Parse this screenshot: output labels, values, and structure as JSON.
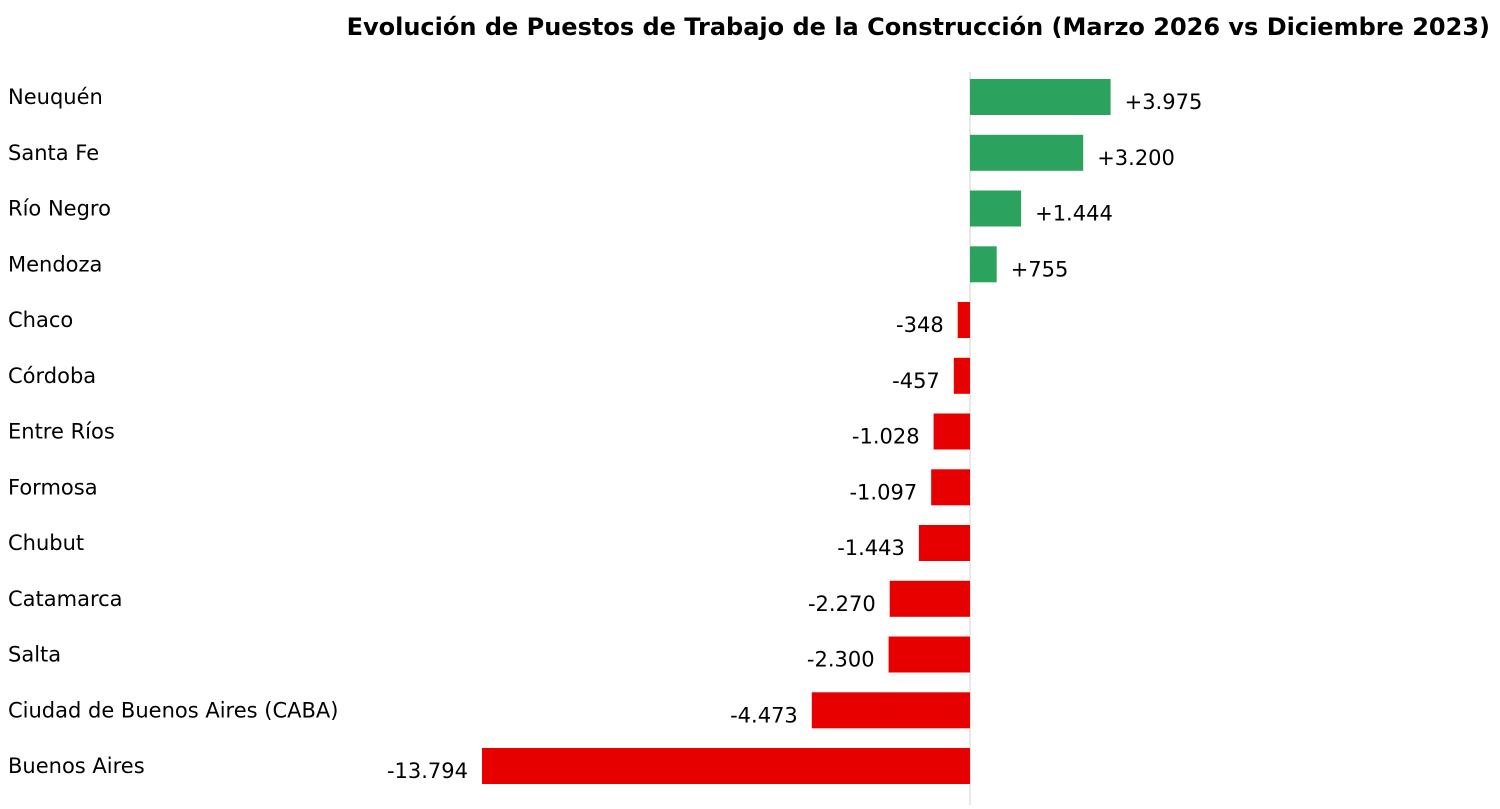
{
  "chart_data": {
    "type": "bar",
    "orientation": "horizontal",
    "title": "Evolución de Puestos de Trabajo de la Construcción (Marzo 2026 vs Diciembre 2023)",
    "xlabel": "",
    "ylabel": "",
    "grid": false,
    "xlim": [
      -14500,
      4600
    ],
    "categories": [
      "Neuquén",
      "Santa Fe",
      "Río Negro",
      "Mendoza",
      "Chaco",
      "Córdoba",
      "Entre Ríos",
      "Formosa",
      "Chubut",
      "Catamarca",
      "Salta",
      "Ciudad de Buenos Aires (CABA)",
      "Buenos Aires"
    ],
    "values": [
      3975,
      3200,
      1444,
      755,
      -348,
      -457,
      -1028,
      -1097,
      -1443,
      -2270,
      -2300,
      -4473,
      -13794
    ],
    "value_labels": [
      "+3.975",
      "+3.200",
      "+1.444",
      "+755",
      "-348",
      "-457",
      "-1.028",
      "-1.097",
      "-1.443",
      "-2.270",
      "-2.300",
      "-4.473",
      "-13.794"
    ],
    "colors": {
      "positive": "#2ca25f",
      "negative": "#e60000",
      "zero_line": "#d0d0d0"
    }
  }
}
